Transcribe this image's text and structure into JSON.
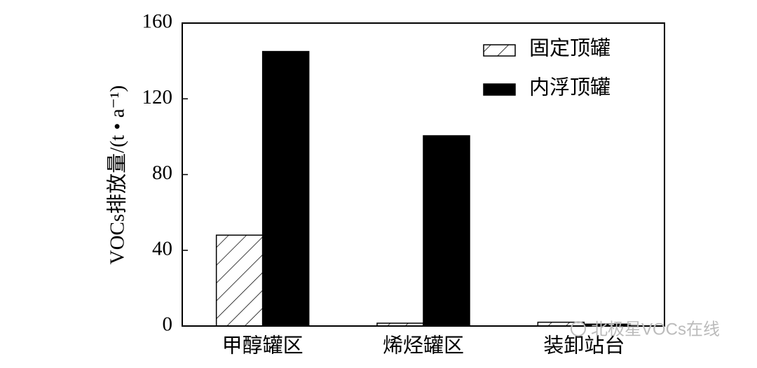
{
  "chart_data": {
    "type": "bar",
    "y_label": "VOCs排放量/(t • a⁻¹)",
    "categories": [
      "甲醇罐区",
      "烯烃罐区",
      "装卸站台"
    ],
    "series": [
      {
        "name": "固定顶罐",
        "color": "#ffffff",
        "hatch": true,
        "values": [
          48,
          1.5,
          2
        ]
      },
      {
        "name": "内浮顶罐",
        "color": "#000000",
        "hatch": false,
        "values": [
          145,
          100.5,
          1
        ]
      }
    ],
    "ylim": [
      0,
      160
    ],
    "yticks": [
      0,
      40,
      80,
      120,
      160
    ],
    "legend": "upper-right",
    "watermark": "北极星VOCs在线"
  }
}
